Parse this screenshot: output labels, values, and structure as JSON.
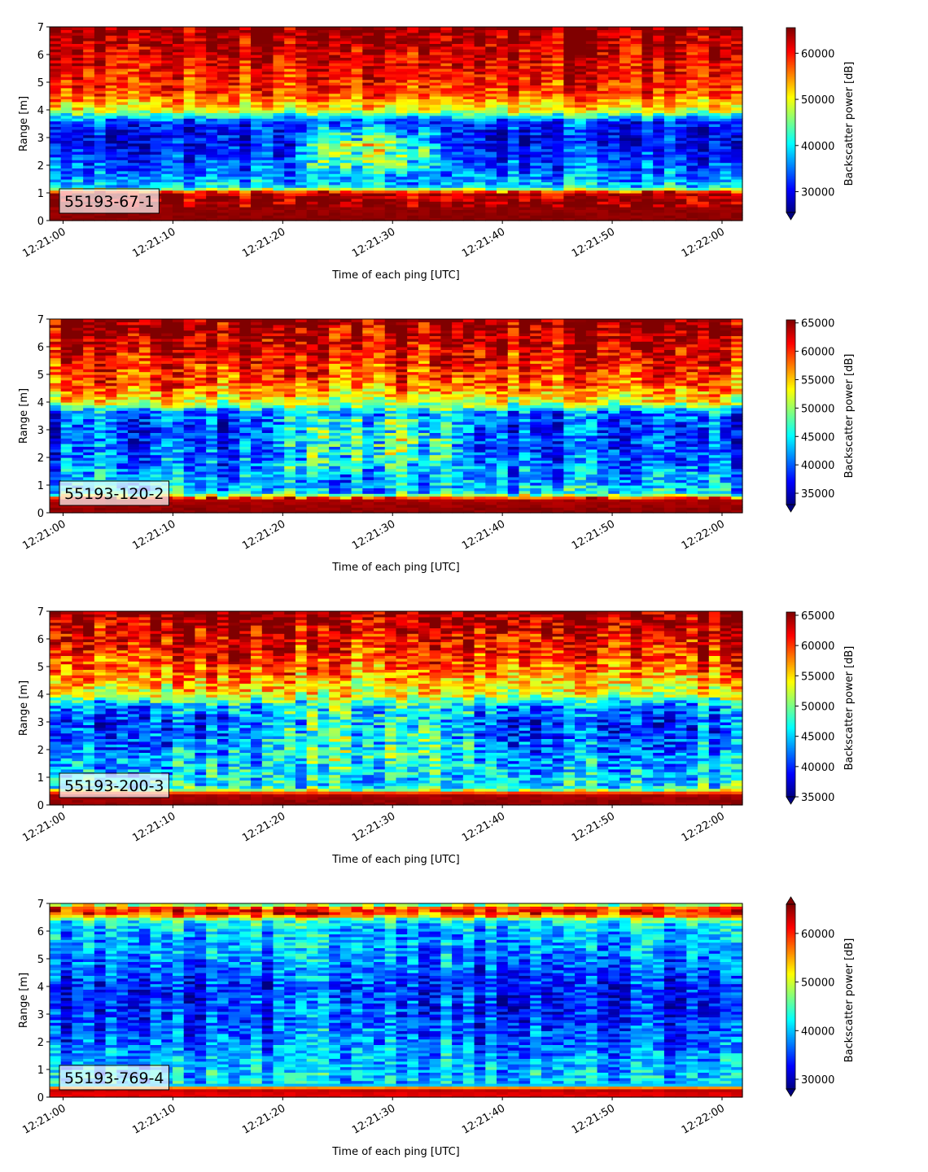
{
  "chart_data": [
    {
      "type": "heatmap",
      "annotation": "55193-67-1",
      "xlabel": "Time of each ping [UTC]",
      "ylabel": "Range [m]",
      "colorbar_label": "Backscatter power [dB]",
      "colormap": "jet",
      "x_ticks": [
        "12:21:00",
        "12:21:10",
        "12:21:20",
        "12:21:30",
        "12:21:40",
        "12:21:50",
        "12:22:00"
      ],
      "y_ticks": [
        0,
        1,
        2,
        3,
        4,
        5,
        6,
        7
      ],
      "ylim": [
        0,
        7
      ],
      "colorbar_ticks": [
        30000,
        40000,
        50000,
        60000
      ],
      "colorbar_range": [
        25500,
        65535
      ],
      "colorbar_extend": "min",
      "profile_key": "p1",
      "profile": [
        [
          0.2,
          65000
        ],
        [
          1.0,
          64000
        ],
        [
          1.2,
          40000
        ],
        [
          1.6,
          36000
        ],
        [
          2.0,
          34000
        ],
        [
          2.6,
          31000
        ],
        [
          3.2,
          30500
        ],
        [
          3.6,
          33000
        ],
        [
          4.0,
          50000
        ],
        [
          4.6,
          58000
        ],
        [
          5.5,
          61000
        ],
        [
          6.3,
          63000
        ],
        [
          7.0,
          65500
        ]
      ],
      "event": {
        "t0": 20,
        "t1": 36,
        "r0": 1.6,
        "r1": 3.6,
        "delta": 16000
      }
    },
    {
      "type": "heatmap",
      "annotation": "55193-120-2",
      "xlabel": "Time of each ping [UTC]",
      "ylabel": "Range [m]",
      "colorbar_label": "Backscatter power [dB]",
      "colormap": "jet",
      "x_ticks": [
        "12:21:00",
        "12:21:10",
        "12:21:20",
        "12:21:30",
        "12:21:40",
        "12:21:50",
        "12:22:00"
      ],
      "y_ticks": [
        0,
        1,
        2,
        3,
        4,
        5,
        6,
        7
      ],
      "ylim": [
        0,
        7
      ],
      "colorbar_ticks": [
        35000,
        40000,
        45000,
        50000,
        55000,
        60000,
        65000
      ],
      "colorbar_range": [
        33000,
        65535
      ],
      "colorbar_extend": "min",
      "profile_key": "p2",
      "profile": [
        [
          0.1,
          65000
        ],
        [
          0.5,
          64000
        ],
        [
          0.7,
          45000
        ],
        [
          1.2,
          42000
        ],
        [
          2.0,
          40000
        ],
        [
          2.8,
          38500
        ],
        [
          3.6,
          40000
        ],
        [
          4.0,
          52000
        ],
        [
          4.6,
          58000
        ],
        [
          5.5,
          61000
        ],
        [
          6.3,
          63500
        ],
        [
          7.0,
          65500
        ]
      ],
      "event": {
        "t0": 18,
        "t1": 38,
        "r0": 1.2,
        "r1": 4.0,
        "delta": 10000
      }
    },
    {
      "type": "heatmap",
      "annotation": "55193-200-3",
      "xlabel": "Time of each ping [UTC]",
      "ylabel": "Range [m]",
      "colorbar_label": "Backscatter power [dB]",
      "colormap": "jet",
      "x_ticks": [
        "12:21:00",
        "12:21:10",
        "12:21:20",
        "12:21:30",
        "12:21:40",
        "12:21:50",
        "12:22:00"
      ],
      "y_ticks": [
        0,
        1,
        2,
        3,
        4,
        5,
        6,
        7
      ],
      "ylim": [
        0,
        7
      ],
      "colorbar_ticks": [
        35000,
        40000,
        45000,
        50000,
        55000,
        60000,
        65000
      ],
      "colorbar_range": [
        35000,
        65535
      ],
      "colorbar_extend": "min",
      "profile_key": "p3",
      "profile": [
        [
          0.1,
          65000
        ],
        [
          0.4,
          64000
        ],
        [
          0.6,
          47000
        ],
        [
          1.5,
          44000
        ],
        [
          2.2,
          42000
        ],
        [
          3.0,
          40500
        ],
        [
          3.6,
          43000
        ],
        [
          4.0,
          53000
        ],
        [
          4.8,
          58000
        ],
        [
          5.6,
          61000
        ],
        [
          6.4,
          63500
        ],
        [
          7.0,
          65500
        ]
      ],
      "event": {
        "t0": 16,
        "t1": 40,
        "r0": 1.0,
        "r1": 4.2,
        "delta": 7500
      }
    },
    {
      "type": "heatmap",
      "annotation": "55193-769-4",
      "xlabel": "Time of each ping [UTC]",
      "ylabel": "Range [m]",
      "colorbar_label": "Backscatter power [dB]",
      "colormap": "jet",
      "x_ticks": [
        "12:21:00",
        "12:21:10",
        "12:21:20",
        "12:21:30",
        "12:21:40",
        "12:21:50",
        "12:22:00"
      ],
      "y_ticks": [
        0,
        1,
        2,
        3,
        4,
        5,
        6,
        7
      ],
      "ylim": [
        0,
        7
      ],
      "colorbar_ticks": [
        30000,
        40000,
        50000,
        60000
      ],
      "colorbar_range": [
        28000,
        66000
      ],
      "colorbar_extend": "both",
      "profile_key": "p4",
      "profile": [
        [
          0.1,
          62000
        ],
        [
          0.3,
          64000
        ],
        [
          0.45,
          40000
        ],
        [
          1.0,
          39500
        ],
        [
          2.0,
          36000
        ],
        [
          3.0,
          33500
        ],
        [
          4.0,
          33000
        ],
        [
          5.0,
          37000
        ],
        [
          6.0,
          39500
        ],
        [
          6.4,
          43000
        ],
        [
          6.6,
          58000
        ],
        [
          6.8,
          62000
        ],
        [
          7.0,
          45000
        ]
      ],
      "event": {
        "t0": 18,
        "t1": 40,
        "r0": 0.5,
        "r1": 6.0,
        "delta": 3500
      }
    }
  ]
}
